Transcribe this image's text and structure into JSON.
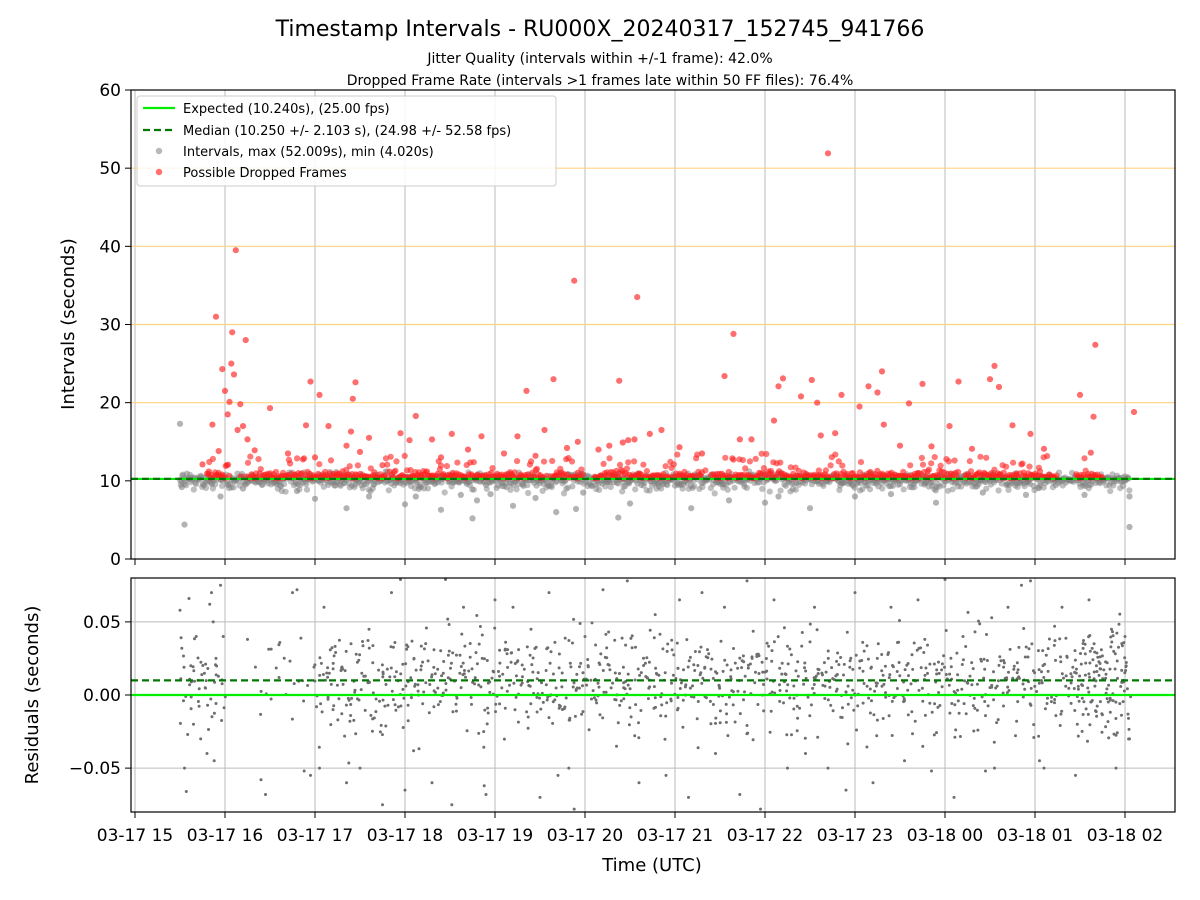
{
  "chart_data": [
    {
      "type": "scatter",
      "title": "Timestamp Intervals - RU000X_20240317_152745_941766",
      "subtitle_lines": [
        "Jitter Quality (intervals within +/-1 frame): 42.0%",
        "Dropped Frame Rate (intervals >1 frames late within 50 FF files): 76.4%"
      ],
      "ylabel": "Intervals (seconds)",
      "ylim": [
        0,
        60
      ],
      "yticks": [
        "0",
        "10",
        "20",
        "30",
        "40",
        "50",
        "60"
      ],
      "grid": "horizontal orange lines at 20, 30, 40, 50; vertical gray lines at hour ticks",
      "legend_position": "upper-left",
      "legend": [
        {
          "label": "Expected (10.240s), (25.00 fps)",
          "style": "solid",
          "color": "#00ee00"
        },
        {
          "label": "Median (10.250 +/- 2.103 s), (24.98 +/- 52.58 fps)",
          "style": "dashed",
          "color": "#007700"
        },
        {
          "label": "Intervals, max (52.009s), min (4.020s)",
          "style": "marker",
          "color": "#888888"
        },
        {
          "label": "Possible Dropped Frames",
          "style": "marker",
          "color": "#ff3333"
        }
      ],
      "expected_line": 10.24,
      "median_line": 10.25,
      "dropped_frame_points": [
        [
          15.75,
          12.1
        ],
        [
          15.82,
          11.2
        ],
        [
          15.86,
          17.2
        ],
        [
          15.9,
          31.0
        ],
        [
          15.93,
          13.8
        ],
        [
          15.97,
          24.3
        ],
        [
          16.0,
          21.5
        ],
        [
          16.03,
          18.5
        ],
        [
          16.05,
          20.1
        ],
        [
          16.07,
          25.0
        ],
        [
          16.08,
          29.0
        ],
        [
          16.1,
          23.6
        ],
        [
          16.12,
          39.5
        ],
        [
          16.14,
          16.5
        ],
        [
          16.17,
          19.8
        ],
        [
          16.2,
          17.0
        ],
        [
          16.23,
          28.0
        ],
        [
          16.25,
          15.3
        ],
        [
          16.33,
          13.9
        ],
        [
          16.5,
          19.3
        ],
        [
          16.7,
          13.5
        ],
        [
          16.9,
          17.1
        ],
        [
          17.0,
          13.0
        ],
        [
          16.95,
          22.7
        ],
        [
          17.05,
          21.0
        ],
        [
          17.15,
          17.0
        ],
        [
          17.35,
          14.5
        ],
        [
          17.4,
          16.3
        ],
        [
          17.42,
          20.5
        ],
        [
          17.45,
          22.6
        ],
        [
          17.5,
          13.7
        ],
        [
          17.6,
          15.5
        ],
        [
          17.75,
          12.0
        ],
        [
          17.95,
          16.1
        ],
        [
          18.05,
          15.2
        ],
        [
          18.12,
          18.3
        ],
        [
          18.3,
          15.3
        ],
        [
          18.4,
          13.0
        ],
        [
          18.52,
          16.0
        ],
        [
          18.7,
          14.0
        ],
        [
          18.85,
          15.7
        ],
        [
          19.1,
          13.5
        ],
        [
          19.25,
          15.7
        ],
        [
          19.35,
          21.5
        ],
        [
          19.45,
          13.2
        ],
        [
          19.55,
          16.5
        ],
        [
          19.65,
          23.0
        ],
        [
          19.8,
          14.2
        ],
        [
          19.88,
          35.6
        ],
        [
          19.92,
          15.0
        ],
        [
          20.15,
          14.0
        ],
        [
          20.27,
          14.5
        ],
        [
          20.38,
          22.8
        ],
        [
          20.42,
          14.9
        ],
        [
          20.48,
          15.2
        ],
        [
          20.55,
          15.3
        ],
        [
          20.58,
          33.5
        ],
        [
          20.72,
          16.0
        ],
        [
          20.85,
          16.5
        ],
        [
          21.05,
          14.3
        ],
        [
          21.3,
          13.5
        ],
        [
          21.55,
          23.4
        ],
        [
          21.65,
          28.8
        ],
        [
          21.72,
          15.3
        ],
        [
          21.85,
          15.3
        ],
        [
          22.1,
          17.7
        ],
        [
          22.15,
          22.1
        ],
        [
          22.2,
          23.1
        ],
        [
          22.4,
          20.8
        ],
        [
          22.52,
          22.9
        ],
        [
          22.58,
          20.0
        ],
        [
          22.62,
          15.8
        ],
        [
          22.7,
          51.9
        ],
        [
          22.78,
          16.1
        ],
        [
          22.85,
          21.0
        ],
        [
          23.05,
          19.5
        ],
        [
          23.15,
          22.1
        ],
        [
          23.25,
          21.3
        ],
        [
          23.3,
          24.0
        ],
        [
          23.32,
          17.2
        ],
        [
          23.5,
          14.5
        ],
        [
          23.6,
          19.9
        ],
        [
          23.75,
          22.4
        ],
        [
          23.85,
          14.4
        ],
        [
          24.05,
          17.0
        ],
        [
          24.15,
          22.7
        ],
        [
          24.3,
          14.1
        ],
        [
          24.5,
          23.0
        ],
        [
          24.55,
          24.7
        ],
        [
          24.6,
          22.0
        ],
        [
          24.75,
          17.1
        ],
        [
          24.95,
          16.0
        ],
        [
          25.1,
          14.1
        ],
        [
          25.5,
          21.0
        ],
        [
          25.62,
          13.6
        ],
        [
          25.65,
          18.2
        ],
        [
          25.67,
          27.4
        ],
        [
          26.1,
          18.8
        ]
      ],
      "interval_outlier_points": [
        [
          15.5,
          17.3
        ],
        [
          15.55,
          4.4
        ],
        [
          15.52,
          9.2
        ],
        [
          15.95,
          8.0
        ],
        [
          16.2,
          9.0
        ],
        [
          16.8,
          8.7
        ],
        [
          17.0,
          7.7
        ],
        [
          17.35,
          6.5
        ],
        [
          17.6,
          8.0
        ],
        [
          18.0,
          7.0
        ],
        [
          18.12,
          8.0
        ],
        [
          18.4,
          6.3
        ],
        [
          18.62,
          8.2
        ],
        [
          18.75,
          5.2
        ],
        [
          18.8,
          7.5
        ],
        [
          18.95,
          8.3
        ],
        [
          19.2,
          6.8
        ],
        [
          19.45,
          7.8
        ],
        [
          19.68,
          6.0
        ],
        [
          19.9,
          6.4
        ],
        [
          19.98,
          8.5
        ],
        [
          20.37,
          5.3
        ],
        [
          20.5,
          7.1
        ],
        [
          21.18,
          6.5
        ],
        [
          21.6,
          7.5
        ],
        [
          22.0,
          7.2
        ],
        [
          22.15,
          8.0
        ],
        [
          22.5,
          6.5
        ],
        [
          23.0,
          8.0
        ],
        [
          23.4,
          8.3
        ],
        [
          23.9,
          7.2
        ],
        [
          24.42,
          8.5
        ],
        [
          24.9,
          8.2
        ],
        [
          25.55,
          8.2
        ],
        [
          26.05,
          4.1
        ],
        [
          26.05,
          8.0
        ]
      ]
    },
    {
      "type": "scatter",
      "ylabel": "Residuals (seconds)",
      "xlabel": "Time (UTC)",
      "ylim": [
        -0.08,
        0.08
      ],
      "yticks": [
        "−0.05",
        "0.00",
        "0.05"
      ],
      "expected_line": 0.0,
      "median_line": 0.01,
      "xlim": [
        15.0,
        26.55
      ],
      "xtick_labels": [
        "03-17 15",
        "03-17 16",
        "03-17 17",
        "03-17 18",
        "03-17 19",
        "03-17 20",
        "03-17 21",
        "03-17 22",
        "03-17 23",
        "03-18 00",
        "03-18 01",
        "03-18 02"
      ],
      "grid": "gray lines at each tick",
      "residual_points": [
        [
          15.5,
          0.058
        ],
        [
          15.52,
          0.032
        ],
        [
          15.55,
          -0.05
        ],
        [
          15.57,
          -0.066
        ],
        [
          15.6,
          0.066
        ],
        [
          15.62,
          0.02
        ],
        [
          15.65,
          -0.02
        ],
        [
          15.68,
          0.04
        ],
        [
          15.7,
          0.01
        ],
        [
          15.73,
          -0.03
        ],
        [
          15.78,
          0.005
        ],
        [
          15.8,
          -0.04
        ],
        [
          15.83,
          0.062
        ],
        [
          15.85,
          0.07
        ],
        [
          15.88,
          -0.045
        ],
        [
          15.9,
          0.025
        ],
        [
          15.95,
          0.075
        ],
        [
          15.98,
          0.04
        ],
        [
          16.25,
          0.038
        ],
        [
          16.4,
          -0.058
        ],
        [
          16.45,
          -0.068
        ],
        [
          16.6,
          0.012
        ],
        [
          16.75,
          0.07
        ],
        [
          16.8,
          0.072
        ],
        [
          16.88,
          -0.052
        ],
        [
          16.95,
          -0.055
        ],
        [
          17.05,
          -0.05
        ],
        [
          17.1,
          0.06
        ],
        [
          17.2,
          -0.01
        ],
        [
          17.35,
          -0.06
        ],
        [
          17.4,
          0.035
        ],
        [
          17.5,
          -0.05
        ],
        [
          17.6,
          0.045
        ],
        [
          17.75,
          -0.075
        ],
        [
          17.85,
          0.07
        ],
        [
          17.95,
          0.079
        ],
        [
          18.0,
          -0.065
        ],
        [
          18.1,
          0.025
        ],
        [
          18.3,
          -0.06
        ],
        [
          18.45,
          0.079
        ],
        [
          18.52,
          -0.075
        ],
        [
          18.65,
          0.06
        ],
        [
          18.88,
          -0.062
        ],
        [
          18.9,
          -0.068
        ],
        [
          19.0,
          0.065
        ],
        [
          19.2,
          0.06
        ],
        [
          19.4,
          0.045
        ],
        [
          19.5,
          -0.07
        ],
        [
          19.6,
          0.07
        ],
        [
          19.7,
          -0.055
        ],
        [
          19.82,
          -0.05
        ],
        [
          19.88,
          -0.078
        ],
        [
          20.0,
          0.04
        ],
        [
          20.2,
          0.072
        ],
        [
          20.35,
          -0.035
        ],
        [
          20.47,
          0.078
        ],
        [
          20.6,
          -0.06
        ],
        [
          20.78,
          0.055
        ],
        [
          20.9,
          -0.055
        ],
        [
          21.05,
          0.065
        ],
        [
          21.15,
          -0.07
        ],
        [
          21.3,
          0.07
        ],
        [
          21.45,
          -0.04
        ],
        [
          21.55,
          0.06
        ],
        [
          21.72,
          -0.068
        ],
        [
          21.8,
          0.078
        ],
        [
          21.95,
          -0.078
        ],
        [
          22.1,
          0.065
        ],
        [
          22.25,
          -0.05
        ],
        [
          22.45,
          -0.04
        ],
        [
          22.55,
          0.06
        ],
        [
          22.7,
          -0.05
        ],
        [
          22.9,
          -0.065
        ],
        [
          23.0,
          0.07
        ],
        [
          23.2,
          -0.06
        ],
        [
          23.4,
          0.06
        ],
        [
          23.55,
          -0.045
        ],
        [
          23.7,
          0.065
        ],
        [
          23.85,
          -0.052
        ],
        [
          24.0,
          0.079
        ],
        [
          24.1,
          -0.07
        ],
        [
          24.2,
          0.04
        ],
        [
          24.45,
          -0.052
        ],
        [
          24.55,
          -0.05
        ],
        [
          24.7,
          0.06
        ],
        [
          24.85,
          0.075
        ],
        [
          24.95,
          0.078
        ],
        [
          25.05,
          -0.045
        ],
        [
          25.1,
          -0.05
        ],
        [
          25.3,
          0.06
        ],
        [
          25.45,
          -0.055
        ],
        [
          25.6,
          0.065
        ],
        [
          25.85,
          0.045
        ],
        [
          25.9,
          -0.05
        ],
        [
          26.0,
          0.04
        ],
        [
          26.05,
          -0.03
        ]
      ]
    }
  ]
}
